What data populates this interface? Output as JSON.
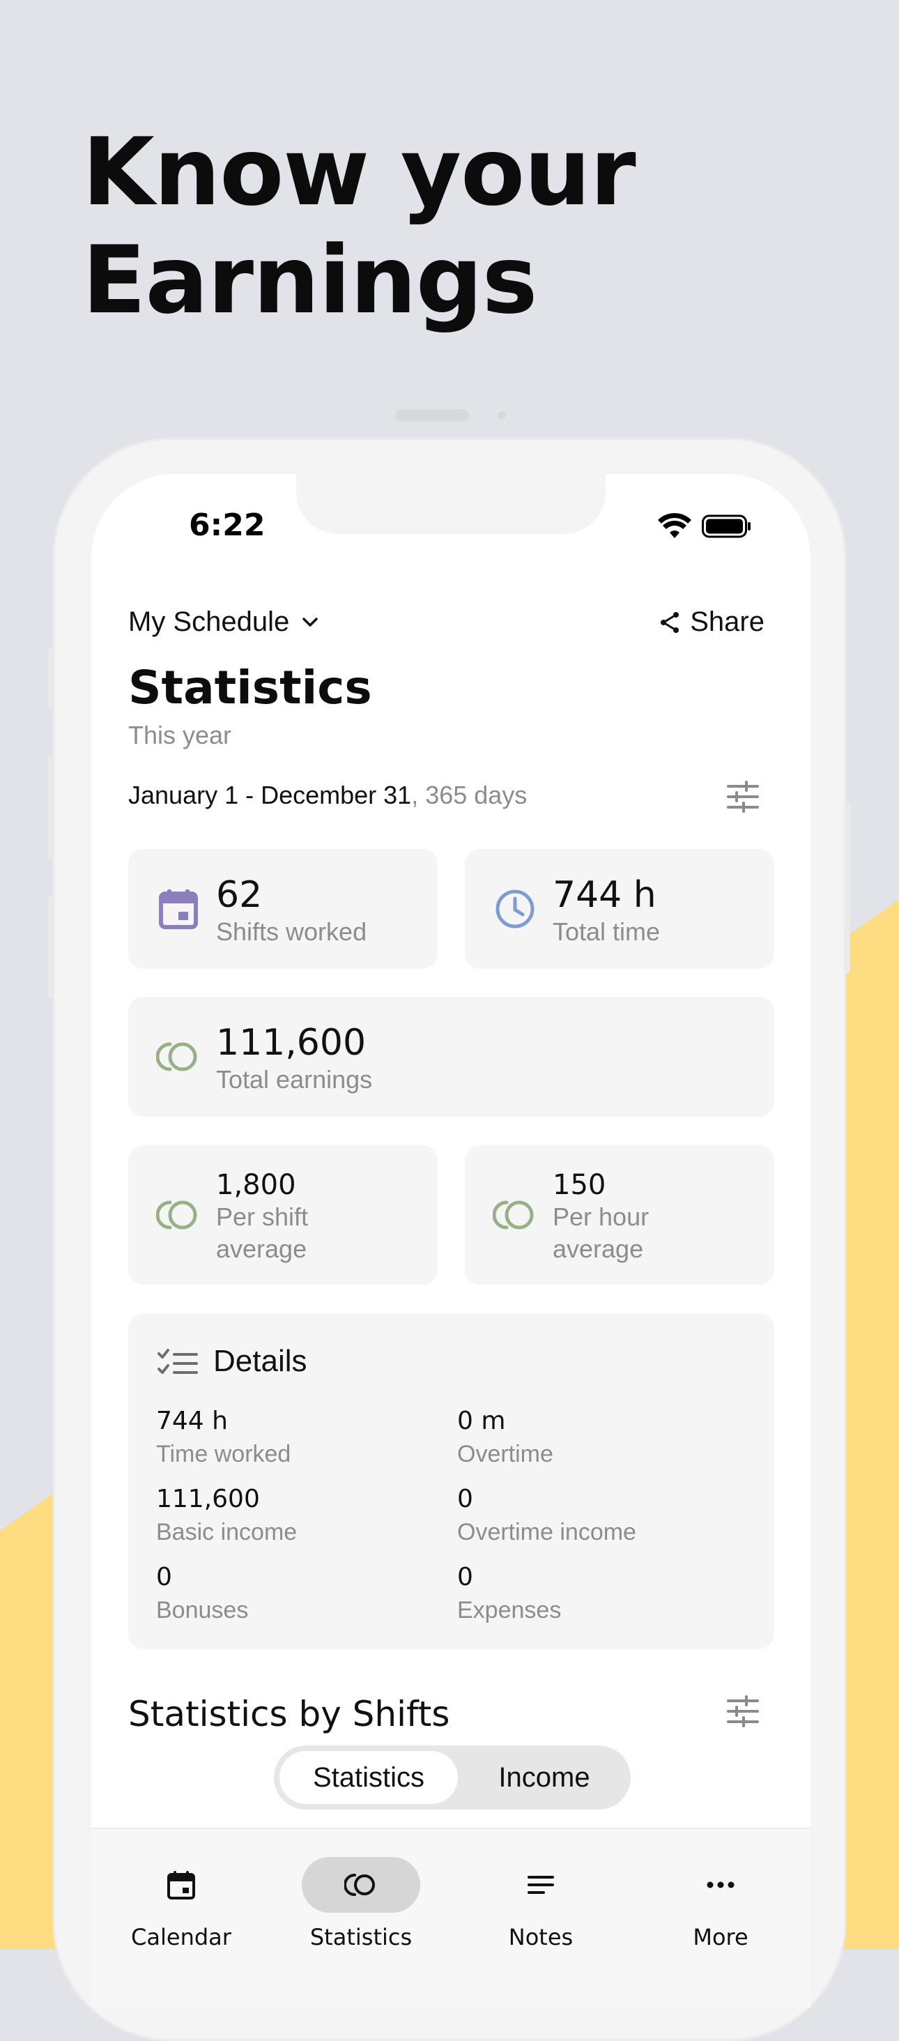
{
  "headline": {
    "line1": "Know your",
    "line2": "Earnings"
  },
  "colors": {
    "background": "#e1e3e8",
    "accent_yellow": "#fddc82",
    "calendar_purple": "#8d7fbd",
    "clock_blue": "#7d9cd0",
    "coins_green": "#98b088"
  },
  "status_bar": {
    "time": "6:22"
  },
  "header": {
    "schedule_label": "My Schedule",
    "share_label": "Share"
  },
  "statistics": {
    "title": "Statistics",
    "subtitle": "This year",
    "range": "January 1 - December 31",
    "range_days": ", 365 days"
  },
  "cards": {
    "shifts": {
      "value": "62",
      "label": "Shifts worked",
      "icon": "calendar-icon"
    },
    "time": {
      "value": "744 h",
      "label": "Total time",
      "icon": "clock-icon"
    },
    "earnings": {
      "value": "111,600",
      "label": "Total earnings",
      "icon": "coins-icon"
    },
    "per_shift": {
      "value": "1,800",
      "label1": "Per shift",
      "label2": "average",
      "icon": "coins-icon"
    },
    "per_hour": {
      "value": "150",
      "label1": "Per hour",
      "label2": "average",
      "icon": "coins-icon"
    }
  },
  "details": {
    "title": "Details",
    "items": [
      {
        "value": "744 h",
        "label": "Time worked"
      },
      {
        "value": "0 m",
        "label": "Overtime"
      },
      {
        "value": "111,600",
        "label": "Basic income"
      },
      {
        "value": "0",
        "label": "Overtime income"
      },
      {
        "value": "0",
        "label": "Bonuses"
      },
      {
        "value": "0",
        "label": "Expenses"
      }
    ]
  },
  "shifts_section": {
    "title": "Statistics by Shifts",
    "segments": [
      "Statistics",
      "Income"
    ],
    "selected": "Statistics"
  },
  "tabbar": {
    "tabs": [
      {
        "label": "Calendar",
        "icon": "calendar-icon"
      },
      {
        "label": "Statistics",
        "icon": "coins-icon"
      },
      {
        "label": "Notes",
        "icon": "notes-icon"
      },
      {
        "label": "More",
        "icon": "more-icon"
      }
    ],
    "active": "Statistics"
  }
}
